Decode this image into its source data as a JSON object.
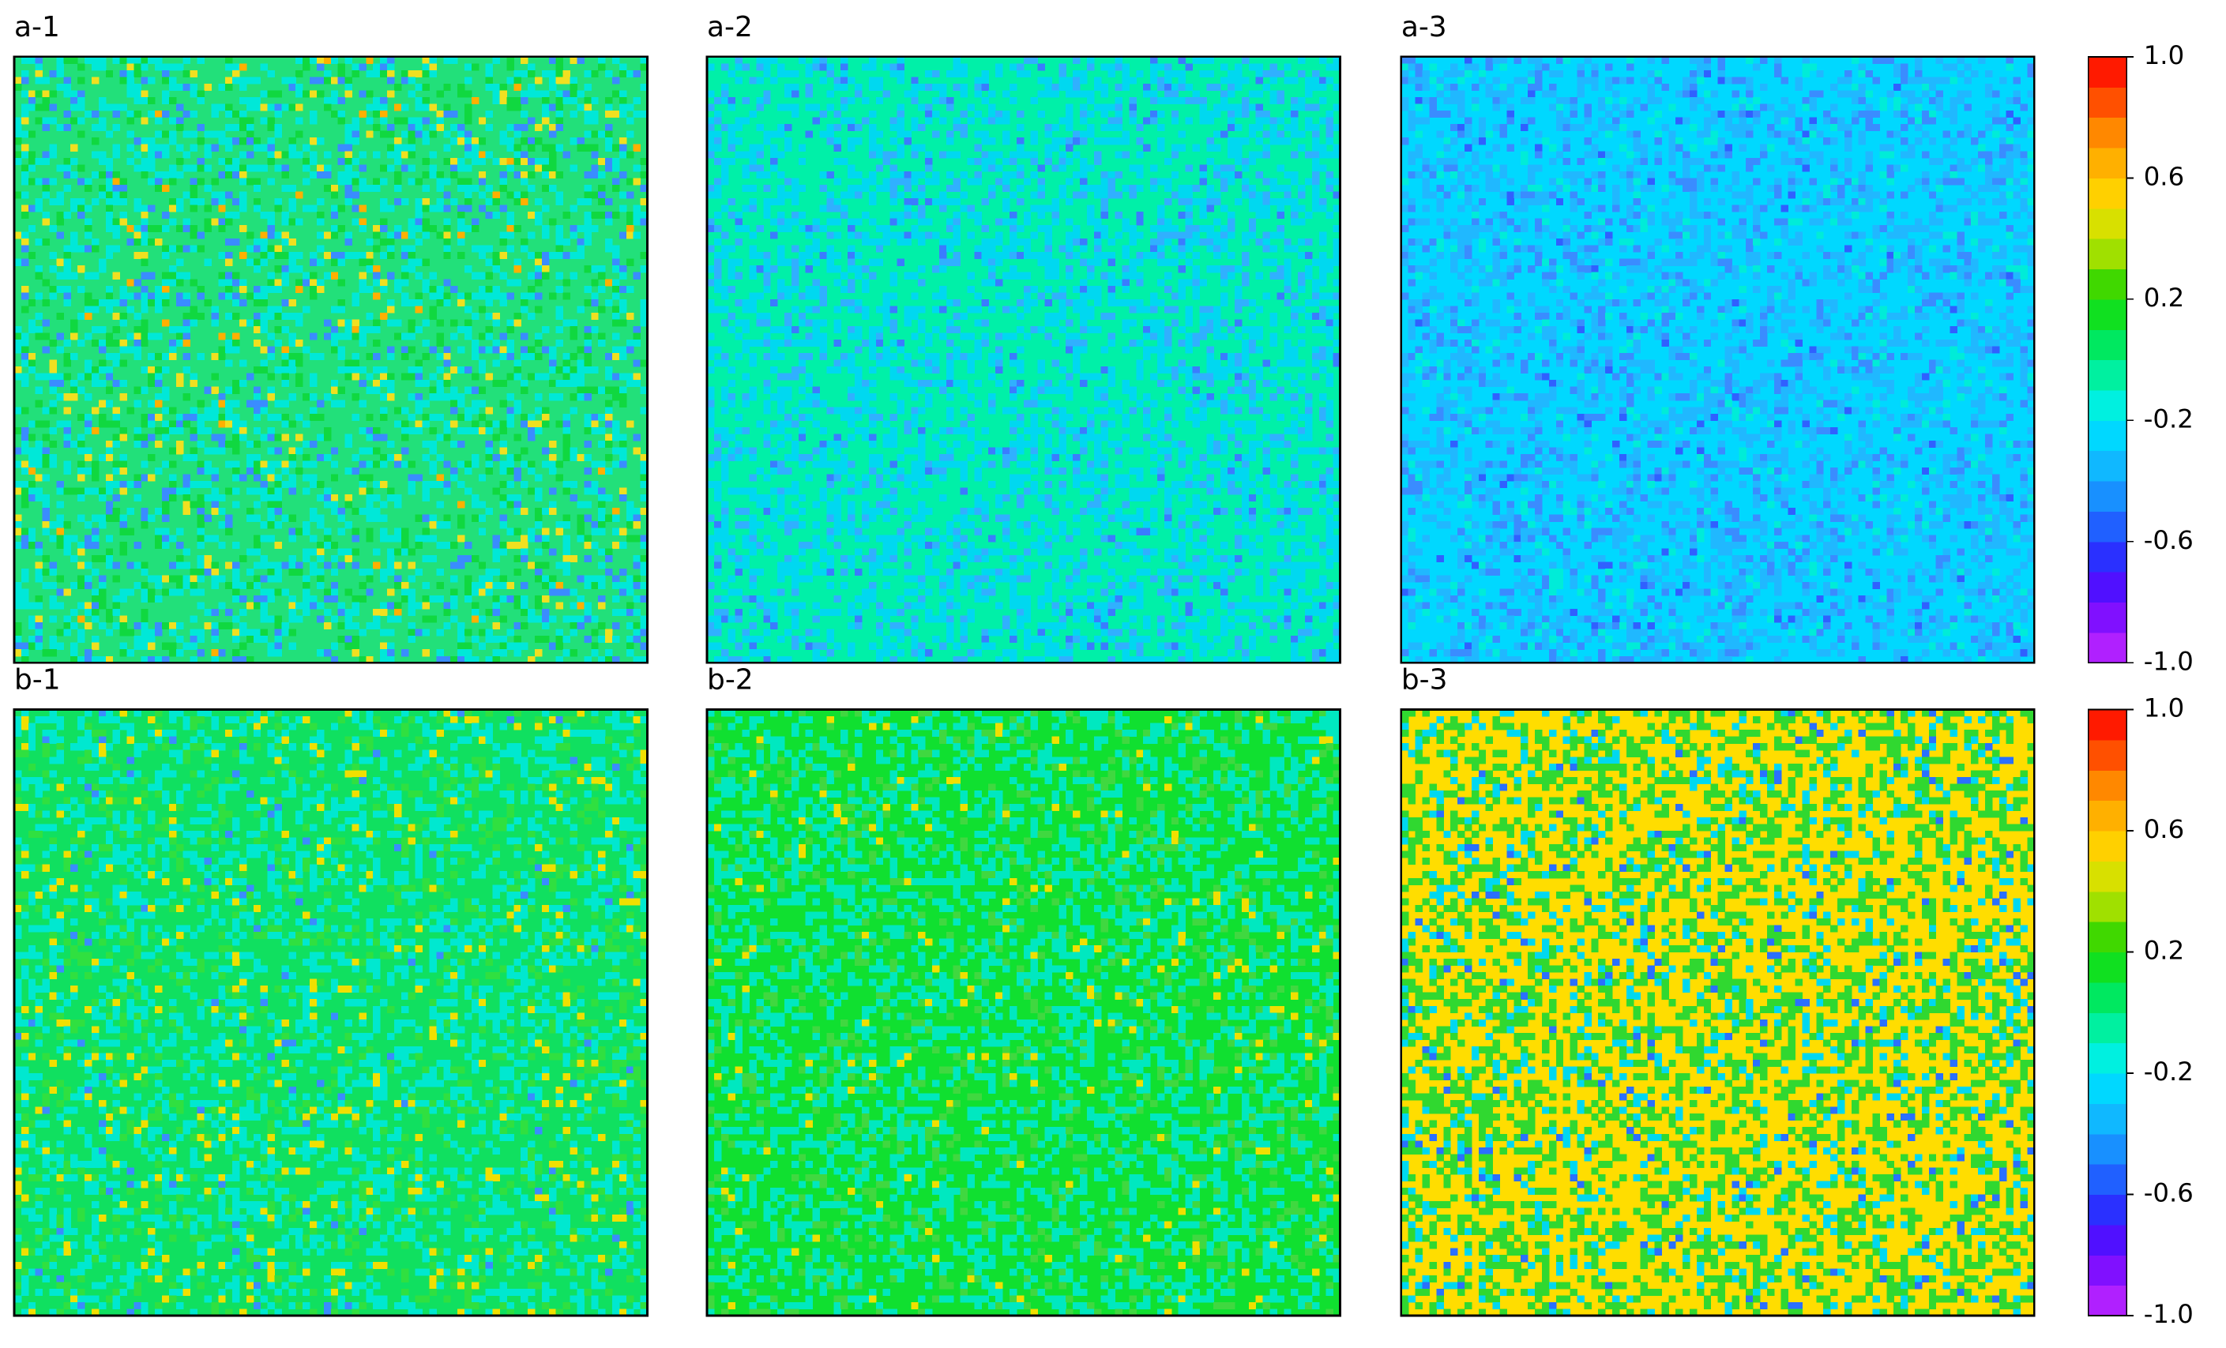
{
  "chart_data": [
    {
      "type": "heatmap",
      "title": "a-1",
      "palette": [
        "#22e07a",
        "#00e8d8",
        "#10d840",
        "#3a8cff",
        "#f0e020",
        "#ffb000"
      ]
    },
    {
      "type": "heatmap",
      "title": "a-2",
      "palette": [
        "#00f0a8",
        "#00d8f0",
        "#30b0ff",
        "#3a7cff"
      ]
    },
    {
      "type": "heatmap",
      "title": "a-3",
      "palette": [
        "#00d8ff",
        "#20b8ff",
        "#3a8cff",
        "#00ecd8",
        "#3060ff"
      ]
    },
    {
      "type": "heatmap",
      "title": "b-1",
      "palette": [
        "#10e060",
        "#00e8d0",
        "#30e040",
        "#f0e000",
        "#3a8cff"
      ]
    },
    {
      "type": "heatmap",
      "title": "b-2",
      "palette": [
        "#10e030",
        "#00e8c0",
        "#40d840",
        "#f0e000"
      ]
    },
    {
      "type": "heatmap",
      "title": "b-3",
      "palette": [
        "#ffdd00",
        "#30d830",
        "#00d8f0",
        "#2a70ff"
      ]
    },
    {
      "type": "colorbar",
      "colors": [
        "#b020ff",
        "#8010ff",
        "#5010ff",
        "#2a30ff",
        "#2060ff",
        "#1890ff",
        "#10b8ff",
        "#00d8ff",
        "#00f0e0",
        "#00f0a0",
        "#00e860",
        "#10e020",
        "#40d800",
        "#a0e000",
        "#d8e000",
        "#ffd000",
        "#ffb000",
        "#ff8800",
        "#ff5000",
        "#ff1a00"
      ],
      "ylim": [
        -1,
        1
      ],
      "yticks": [
        {
          "value": -1,
          "label": "-1.0"
        },
        -0.6,
        -0.2,
        0.2,
        0.6,
        {
          "value": 1,
          "label": "1.0"
        }
      ]
    },
    {
      "type": "colorbar",
      "colors": [
        "#b020ff",
        "#8010ff",
        "#5010ff",
        "#2a30ff",
        "#2060ff",
        "#1890ff",
        "#10b8ff",
        "#00d8ff",
        "#00f0e0",
        "#00f0a0",
        "#00e860",
        "#10e020",
        "#40d800",
        "#a0e000",
        "#d8e000",
        "#ffd000",
        "#ffb000",
        "#ff8800",
        "#ff5000",
        "#ff1a00"
      ],
      "ylim": [
        -1,
        1
      ],
      "yticks": [
        {
          "value": -1,
          "label": "-1.0"
        },
        -0.6,
        -0.2,
        0.2,
        0.6,
        {
          "value": 1,
          "label": "1.0"
        }
      ]
    }
  ]
}
